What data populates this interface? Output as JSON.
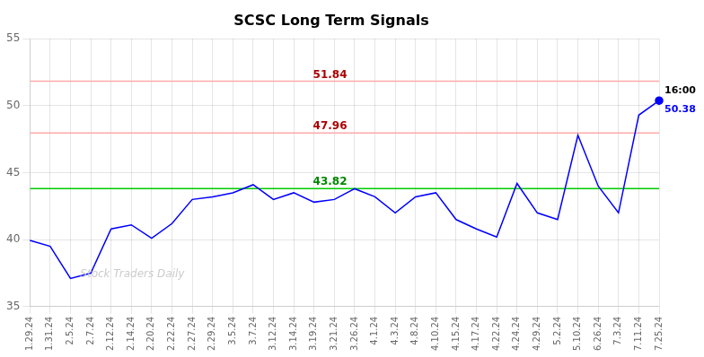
{
  "chart_data": {
    "type": "line",
    "title": "SCSC Long Term Signals",
    "categories": [
      "1.29.24",
      "1.31.24",
      "2.5.24",
      "2.7.24",
      "2.12.24",
      "2.14.24",
      "2.20.24",
      "2.22.24",
      "2.27.24",
      "2.29.24",
      "3.5.24",
      "3.7.24",
      "3.12.24",
      "3.14.24",
      "3.19.24",
      "3.21.24",
      "3.26.24",
      "4.1.24",
      "4.3.24",
      "4.8.24",
      "4.10.24",
      "4.15.24",
      "4.17.24",
      "4.22.24",
      "4.24.24",
      "4.29.24",
      "5.2.24",
      "5.10.24",
      "6.26.24",
      "7.3.24",
      "7.11.24",
      "7.25.24"
    ],
    "values": [
      39.95,
      39.5,
      37.1,
      37.5,
      40.8,
      41.1,
      40.1,
      41.2,
      43.0,
      43.2,
      43.5,
      44.1,
      43.0,
      43.5,
      42.8,
      43.0,
      43.8,
      43.2,
      42.0,
      43.2,
      43.5,
      41.5,
      40.8,
      40.2,
      44.2,
      42.0,
      41.5,
      47.8,
      44.0,
      42.0,
      49.3,
      50.38
    ],
    "color": "blue",
    "ylim": [
      35,
      55
    ],
    "yticks": [
      35,
      40,
      45,
      50,
      55
    ],
    "grid": true,
    "reference_lines": [
      {
        "value": 51.84,
        "color": "#ffaaaa",
        "label_color": "#aa0000"
      },
      {
        "value": 47.96,
        "color": "#ffaaaa",
        "label_color": "#aa0000"
      },
      {
        "value": 43.82,
        "color": "#00cc00",
        "label_color": "#008800"
      }
    ],
    "last_time": "16:00",
    "last_price": 50.38,
    "watermark": "Stock Traders Daily"
  }
}
